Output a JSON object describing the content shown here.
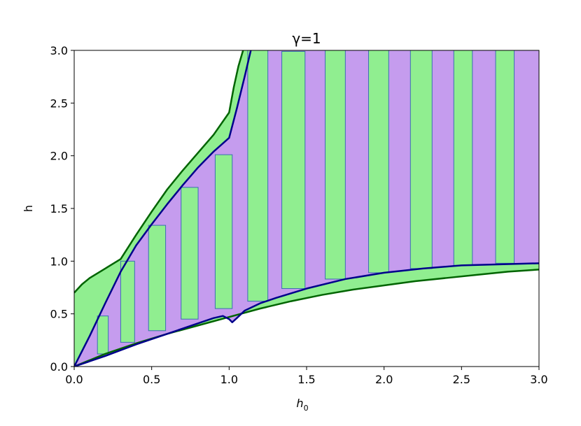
{
  "chart_data": {
    "type": "area",
    "title": "γ=1",
    "xlabel": "h",
    "xlabel_sub": "0",
    "ylabel": "h",
    "xlim": [
      0,
      3
    ],
    "ylim": [
      0,
      3
    ],
    "xticks": [
      "0.0",
      "0.5",
      "1.0",
      "1.5",
      "2.0",
      "2.5",
      "3.0"
    ],
    "yticks": [
      "0.0",
      "0.5",
      "1.0",
      "1.5",
      "2.0",
      "2.5",
      "3.0"
    ],
    "colors": {
      "green_fill": "#90ee90",
      "green_line": "#006400",
      "purple_fill": "#c59cee",
      "navy_line": "#00008b",
      "bar_edge": "#3b6fb0"
    },
    "series": [
      {
        "role": "green-outer-upper",
        "x": [
          0,
          0.05,
          0.1,
          0.2,
          0.3,
          0.4,
          0.5,
          0.6,
          0.7,
          0.8,
          0.9,
          1.0,
          1.03,
          1.06,
          1.09
        ],
        "values": [
          0.7,
          0.78,
          0.84,
          0.93,
          1.02,
          1.25,
          1.47,
          1.68,
          1.86,
          2.03,
          2.2,
          2.41,
          2.65,
          2.85,
          3.0
        ]
      },
      {
        "role": "green-outer-lower",
        "x": [
          0,
          0.2,
          0.4,
          0.6,
          0.8,
          1.0,
          1.2,
          1.4,
          1.6,
          1.8,
          2.0,
          2.2,
          2.4,
          2.6,
          2.8,
          3.0
        ],
        "values": [
          0,
          0.12,
          0.22,
          0.31,
          0.39,
          0.47,
          0.55,
          0.62,
          0.68,
          0.73,
          0.77,
          0.81,
          0.84,
          0.87,
          0.9,
          0.92
        ]
      },
      {
        "role": "navy-upper",
        "x": [
          0,
          0.1,
          0.2,
          0.3,
          0.4,
          0.5,
          0.6,
          0.7,
          0.8,
          0.9,
          1.0,
          1.05,
          1.1,
          1.14
        ],
        "values": [
          0,
          0.29,
          0.6,
          0.9,
          1.15,
          1.35,
          1.54,
          1.72,
          1.89,
          2.04,
          2.17,
          2.45,
          2.75,
          3.0
        ]
      },
      {
        "role": "navy-lower",
        "x": [
          0,
          0.2,
          0.4,
          0.6,
          0.8,
          0.9,
          0.96,
          1.0,
          1.02,
          1.05,
          1.1,
          1.2,
          1.3,
          1.5,
          1.75,
          2.0,
          2.25,
          2.5,
          2.75,
          3.0
        ],
        "values": [
          0,
          0.1,
          0.21,
          0.31,
          0.41,
          0.46,
          0.48,
          0.45,
          0.42,
          0.46,
          0.53,
          0.6,
          0.65,
          0.74,
          0.83,
          0.89,
          0.93,
          0.96,
          0.97,
          0.98
        ]
      }
    ],
    "bars": [
      {
        "x0": 0.15,
        "x1": 0.22,
        "y0": 0.12,
        "y1": 0.48
      },
      {
        "x0": 0.3,
        "x1": 0.39,
        "y0": 0.23,
        "y1": 1.0
      },
      {
        "x0": 0.48,
        "x1": 0.59,
        "y0": 0.34,
        "y1": 1.34
      },
      {
        "x0": 0.69,
        "x1": 0.8,
        "y0": 0.45,
        "y1": 1.7
      },
      {
        "x0": 0.91,
        "x1": 1.02,
        "y0": 0.55,
        "y1": 2.01
      },
      {
        "x0": 1.12,
        "x1": 1.25,
        "y0": 0.62,
        "y1": 3.0
      },
      {
        "x0": 1.34,
        "x1": 1.49,
        "y0": 0.74,
        "y1": 2.99
      },
      {
        "x0": 1.62,
        "x1": 1.75,
        "y0": 0.83,
        "y1": 3.0
      },
      {
        "x0": 1.9,
        "x1": 2.03,
        "y0": 0.89,
        "y1": 3.0
      },
      {
        "x0": 2.17,
        "x1": 2.31,
        "y0": 0.93,
        "y1": 3.0
      },
      {
        "x0": 2.45,
        "x1": 2.57,
        "y0": 0.96,
        "y1": 3.0
      },
      {
        "x0": 2.72,
        "x1": 2.84,
        "y0": 0.98,
        "y1": 3.0
      }
    ]
  }
}
